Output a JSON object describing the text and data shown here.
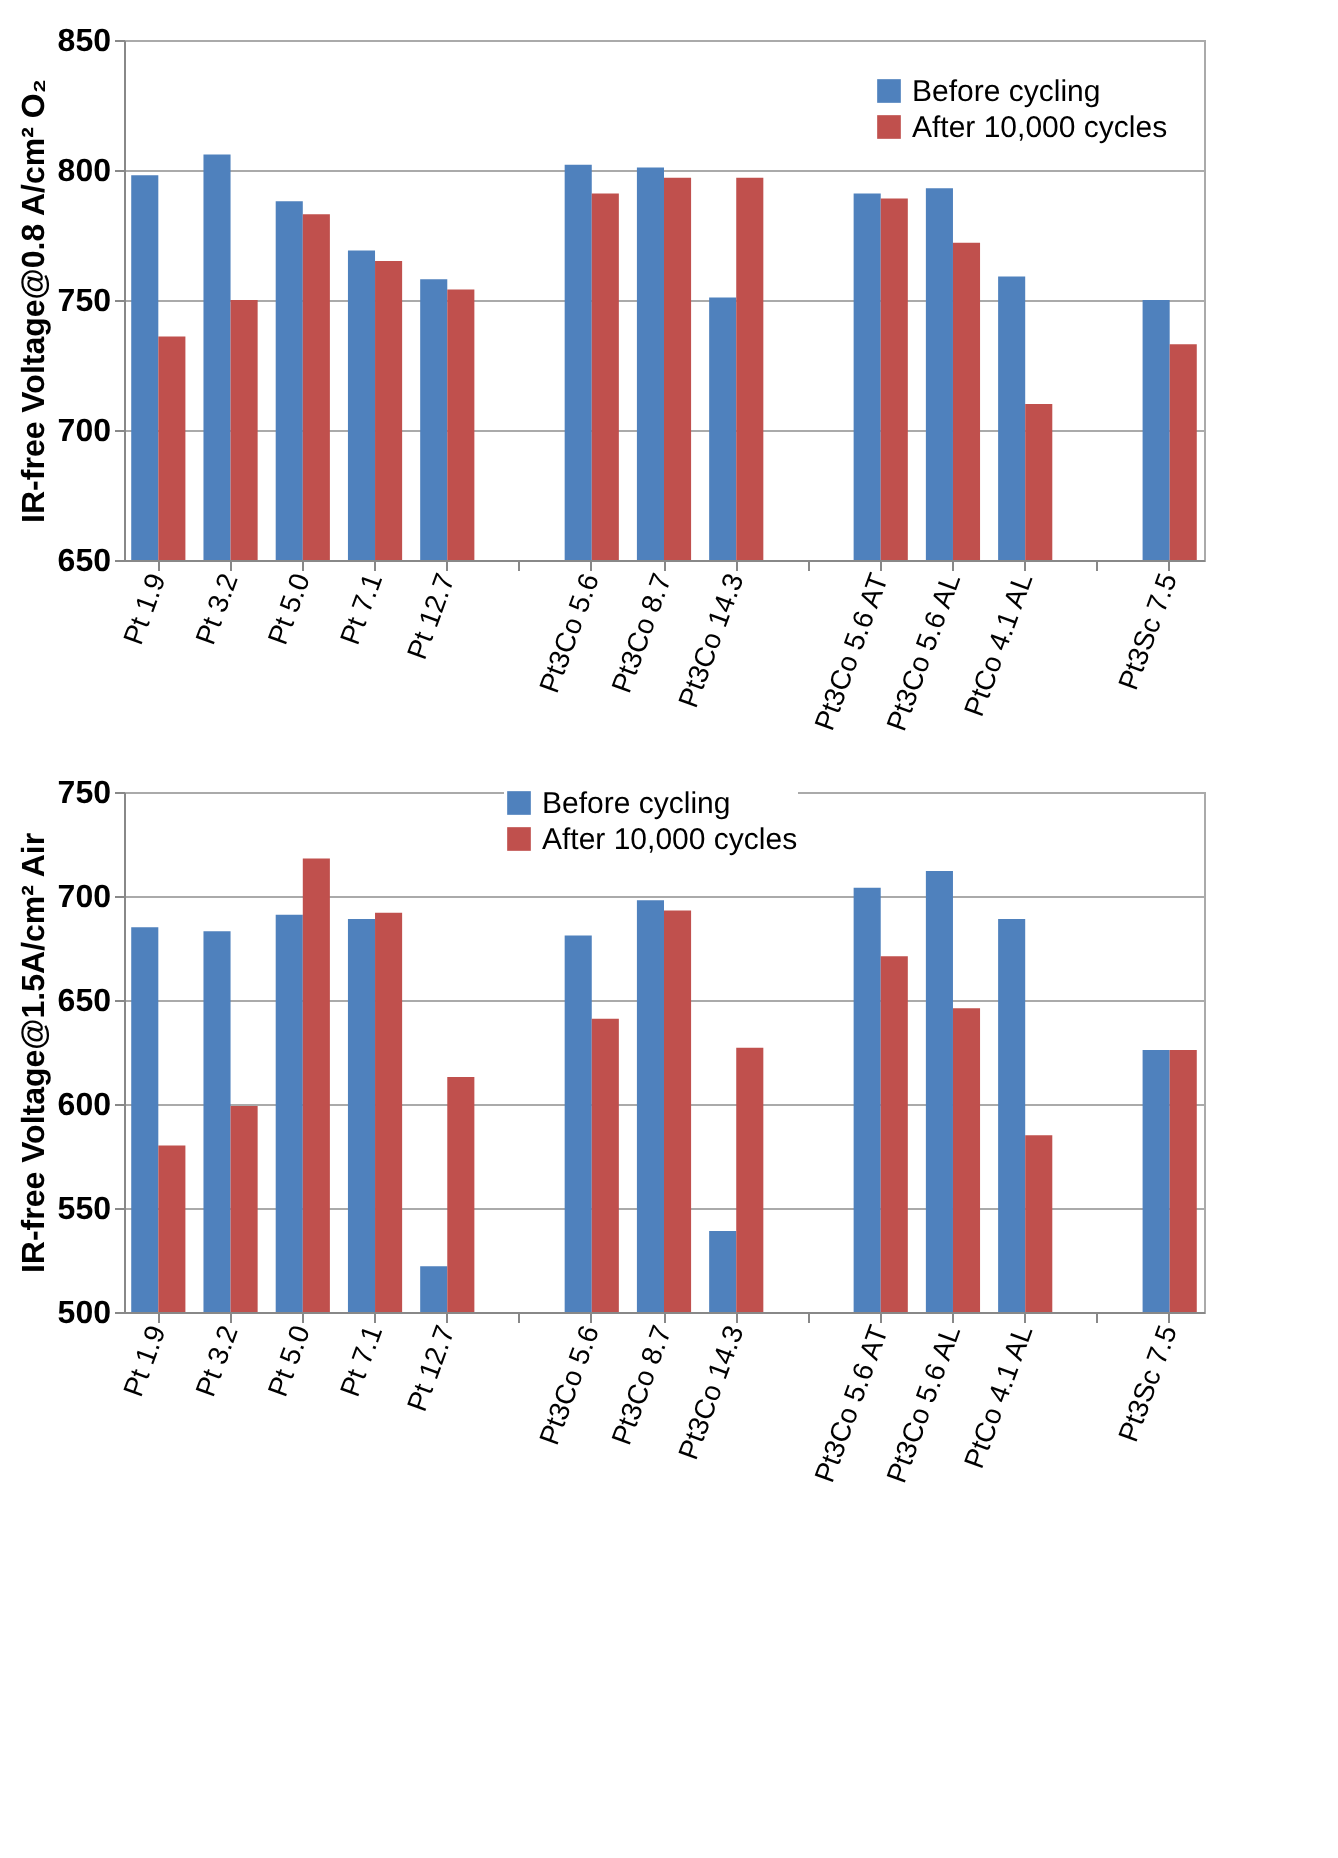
{
  "chart_data": [
    {
      "type": "bar",
      "ylabel": "IR-free Voltage@0.8 A/cm² O₂",
      "categories": [
        "Pt 1.9",
        "Pt 3.2",
        "Pt 5.0",
        "Pt 7.1",
        "Pt 12.7",
        null,
        "Pt3Co 5.6",
        "Pt3Co 8.7",
        "Pt3Co 14.3",
        null,
        "Pt3Co 5.6 AT",
        "Pt3Co 5.6 AL",
        "PtCo 4.1 AL",
        null,
        "Pt3Sc 7.5"
      ],
      "series": [
        {
          "name": "Before cycling",
          "color": "#4f81bd",
          "values": [
            798,
            806,
            788,
            769,
            758,
            null,
            802,
            801,
            751,
            null,
            791,
            793,
            759,
            null,
            750
          ]
        },
        {
          "name": "After 10,000 cycles",
          "color": "#c0504d",
          "values": [
            736,
            750,
            783,
            765,
            754,
            null,
            791,
            797,
            797,
            null,
            789,
            772,
            710,
            null,
            733
          ]
        }
      ],
      "ylim": [
        650,
        850
      ],
      "yticks": [
        650,
        700,
        750,
        800,
        850
      ],
      "grid": "y",
      "legend": "top right"
    },
    {
      "type": "bar",
      "ylabel": "IR-free Voltage@1.5A/cm²  Air",
      "categories": [
        "Pt 1.9",
        "Pt 3.2",
        "Pt 5.0",
        "Pt 7.1",
        "Pt 12.7",
        null,
        "Pt3Co 5.6",
        "Pt3Co 8.7",
        "Pt3Co 14.3",
        null,
        "Pt3Co 5.6 AT",
        "Pt3Co 5.6 AL",
        "PtCo 4.1 AL",
        null,
        "Pt3Sc 7.5"
      ],
      "series": [
        {
          "name": "Before cycling",
          "color": "#4f81bd",
          "values": [
            685,
            683,
            691,
            689,
            522,
            null,
            681,
            698,
            539,
            null,
            704,
            712,
            689,
            null,
            626
          ]
        },
        {
          "name": "After 10,000 cycles",
          "color": "#c0504d",
          "values": [
            580,
            599,
            718,
            692,
            613,
            null,
            641,
            693,
            627,
            null,
            671,
            646,
            585,
            null,
            626
          ]
        }
      ],
      "ylim": [
        500,
        750
      ],
      "yticks": [
        500,
        550,
        600,
        650,
        700,
        750
      ],
      "grid": "y",
      "legend": "top"
    }
  ]
}
